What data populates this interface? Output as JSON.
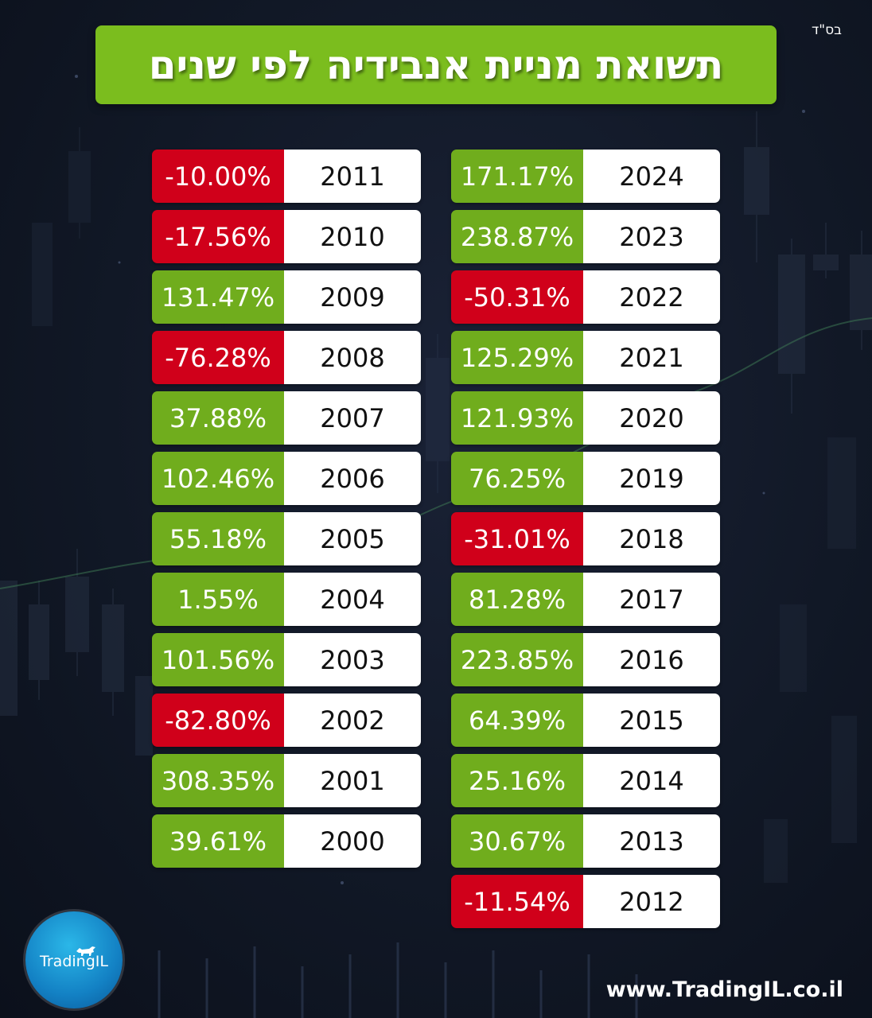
{
  "header": {
    "corner_text": "בס\"ד",
    "title": "תשואת מניית אנבידיה לפי שנים"
  },
  "colors": {
    "positive": "#70ad1d",
    "negative": "#d0001a",
    "banner": "#7bbd1e"
  },
  "table_right": [
    {
      "year": "2024",
      "value": "171.17%",
      "trend": "positive"
    },
    {
      "year": "2023",
      "value": "238.87%",
      "trend": "positive"
    },
    {
      "year": "2022",
      "value": "-50.31%",
      "trend": "negative"
    },
    {
      "year": "2021",
      "value": "125.29%",
      "trend": "positive"
    },
    {
      "year": "2020",
      "value": "121.93%",
      "trend": "positive"
    },
    {
      "year": "2019",
      "value": "76.25%",
      "trend": "positive"
    },
    {
      "year": "2018",
      "value": "-31.01%",
      "trend": "negative"
    },
    {
      "year": "2017",
      "value": "81.28%",
      "trend": "positive"
    },
    {
      "year": "2016",
      "value": "223.85%",
      "trend": "positive"
    },
    {
      "year": "2015",
      "value": "64.39%",
      "trend": "positive"
    },
    {
      "year": "2014",
      "value": "25.16%",
      "trend": "positive"
    },
    {
      "year": "2013",
      "value": "30.67%",
      "trend": "positive"
    },
    {
      "year": "2012",
      "value": "-11.54%",
      "trend": "negative"
    }
  ],
  "table_left": [
    {
      "year": "2011",
      "value": "-10.00%",
      "trend": "negative"
    },
    {
      "year": "2010",
      "value": "-17.56%",
      "trend": "negative"
    },
    {
      "year": "2009",
      "value": "131.47%",
      "trend": "positive"
    },
    {
      "year": "2008",
      "value": "-76.28%",
      "trend": "negative"
    },
    {
      "year": "2007",
      "value": "37.88%",
      "trend": "positive"
    },
    {
      "year": "2006",
      "value": "102.46%",
      "trend": "positive"
    },
    {
      "year": "2005",
      "value": "55.18%",
      "trend": "positive"
    },
    {
      "year": "2004",
      "value": "1.55%",
      "trend": "positive"
    },
    {
      "year": "2003",
      "value": "101.56%",
      "trend": "positive"
    },
    {
      "year": "2002",
      "value": "-82.80%",
      "trend": "negative"
    },
    {
      "year": "2001",
      "value": "308.35%",
      "trend": "positive"
    },
    {
      "year": "2000",
      "value": "39.61%",
      "trend": "positive"
    }
  ],
  "footer": {
    "logo_text": "TradingIL",
    "logo_icon": "bull-icon",
    "website": "www.TradingIL.co.il"
  }
}
